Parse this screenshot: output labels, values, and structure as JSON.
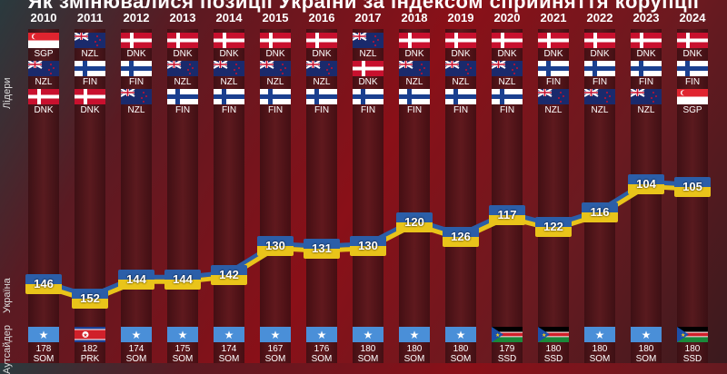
{
  "title": "Як змінювалися позиції України за індексом сприйняття корупції",
  "side_labels": {
    "leaders": "Лідери",
    "ukraine": "Україна",
    "outsider": "Аутсайдер"
  },
  "colors": {
    "ukraine_blue": "#2b5ea8",
    "ukraine_yellow": "#e9c41a"
  },
  "chart_data": {
    "type": "line",
    "categories": [
      "2010",
      "2011",
      "2012",
      "2013",
      "2014",
      "2015",
      "2016",
      "2017",
      "2018",
      "2019",
      "2020",
      "2021",
      "2022",
      "2023",
      "2024"
    ],
    "series": [
      {
        "name": "Україна",
        "values": [
          146,
          152,
          144,
          144,
          142,
          130,
          131,
          130,
          120,
          126,
          117,
          122,
          116,
          104,
          105
        ]
      }
    ],
    "leaders": [
      [
        "SGP",
        "NZL",
        "DNK"
      ],
      [
        "NZL",
        "FIN",
        "DNK"
      ],
      [
        "DNK",
        "FIN",
        "NZL"
      ],
      [
        "DNK",
        "NZL",
        "FIN"
      ],
      [
        "DNK",
        "NZL",
        "FIN"
      ],
      [
        "DNK",
        "NZL",
        "FIN"
      ],
      [
        "DNK",
        "NZL",
        "FIN"
      ],
      [
        "NZL",
        "DNK",
        "FIN"
      ],
      [
        "DNK",
        "NZL",
        "FIN"
      ],
      [
        "DNK",
        "NZL",
        "FIN"
      ],
      [
        "DNK",
        "NZL",
        "FIN"
      ],
      [
        "DNK",
        "FIN",
        "NZL"
      ],
      [
        "DNK",
        "FIN",
        "NZL"
      ],
      [
        "DNK",
        "FIN",
        "NZL"
      ],
      [
        "DNK",
        "FIN",
        "SGP"
      ]
    ],
    "outsiders": [
      {
        "rank": "178",
        "code": "SOM"
      },
      {
        "rank": "182",
        "code": "PRK"
      },
      {
        "rank": "174",
        "code": "SOM"
      },
      {
        "rank": "175",
        "code": "SOM"
      },
      {
        "rank": "174",
        "code": "SOM"
      },
      {
        "rank": "167",
        "code": "SOM"
      },
      {
        "rank": "176",
        "code": "SOM"
      },
      {
        "rank": "180",
        "code": "SOM"
      },
      {
        "rank": "180",
        "code": "SOM"
      },
      {
        "rank": "180",
        "code": "SOM"
      },
      {
        "rank": "179",
        "code": "SSD"
      },
      {
        "rank": "180",
        "code": "SSD"
      },
      {
        "rank": "180",
        "code": "SOM"
      },
      {
        "rank": "180",
        "code": "SOM"
      },
      {
        "rank": "180",
        "code": "SSD"
      }
    ],
    "yaxis": "rank, inverted"
  }
}
